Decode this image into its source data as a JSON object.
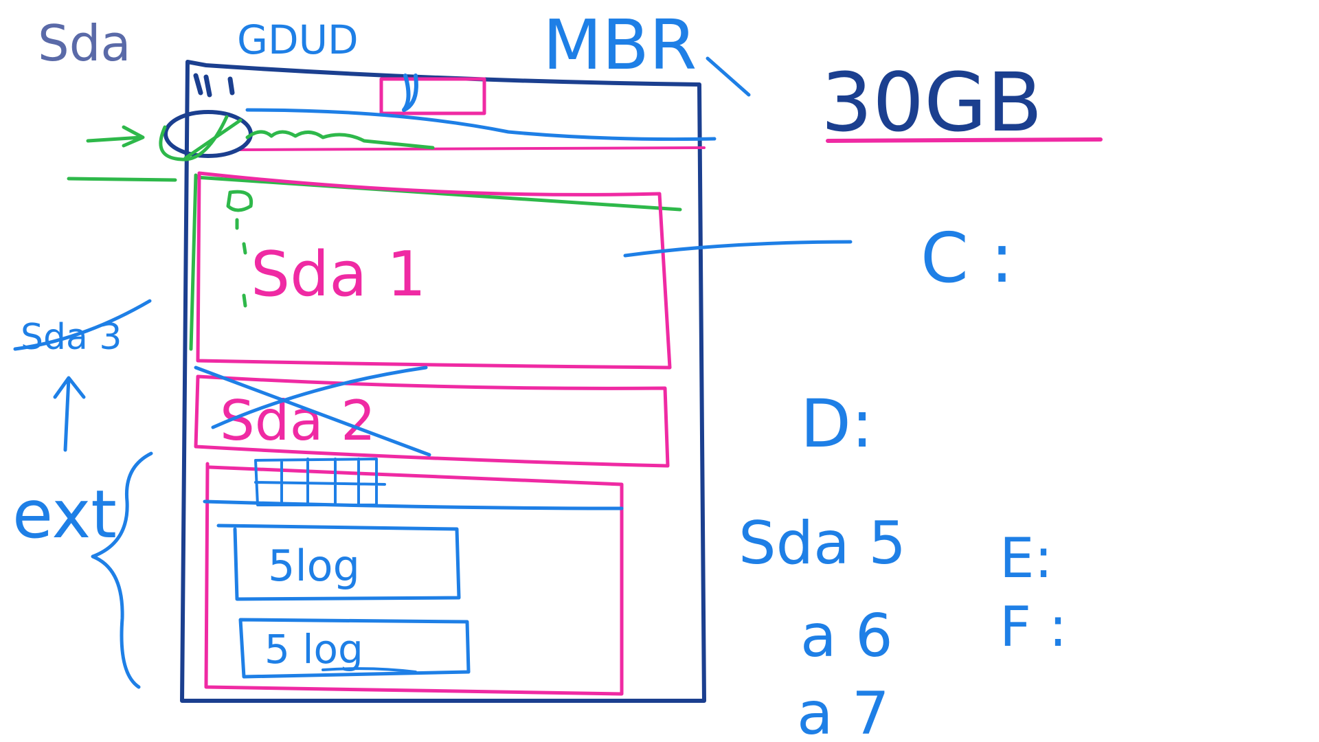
{
  "colors": {
    "navy": "#1b3f8f",
    "blue": "#1e7fe6",
    "pink": "#ef2aa3",
    "green": "#2eb84a",
    "slate": "#5a6aa8"
  },
  "labels": {
    "disk": "Sda",
    "mbr_scribble": "GDUD",
    "mbr": "MBR",
    "capacity": "30GB",
    "sda1": "Sda 1",
    "sda2": "Sda 2",
    "sda3_side": "Sda 3",
    "ext": "ext",
    "log1": "5log",
    "log2": "5 log",
    "sda5": "Sda 5",
    "a6": "a 6",
    "a7": "a 7",
    "drive_c": "C :",
    "drive_d": "D:",
    "drive_e": "E:",
    "drive_f": "F :"
  },
  "struck_out": [
    "Sda 2",
    "Sda 3"
  ]
}
